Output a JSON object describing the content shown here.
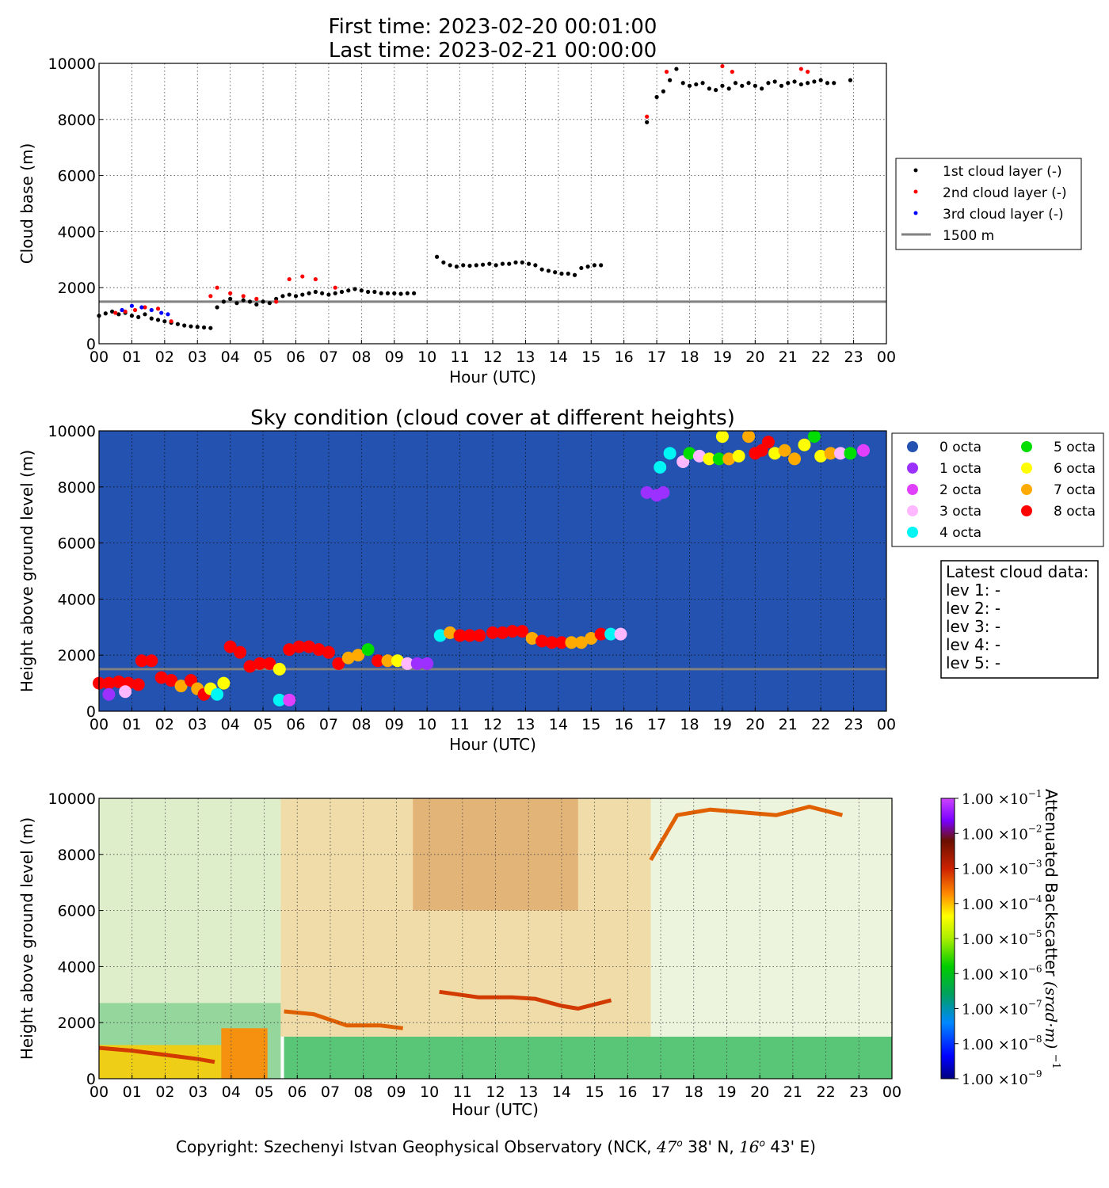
{
  "header": {
    "first_time": "First time: 2023-02-20 00:01:00",
    "last_time": "Last time: 2023-02-21 00:00:00"
  },
  "colors": {
    "layer1": "#000000",
    "layer2": "#ff0000",
    "layer3": "#0000ff",
    "reference_line": "#808080",
    "sky_background": "#2452b0",
    "octa_0": "#2452b0",
    "octa_1": "#9b30ff",
    "octa_2": "#e040fb",
    "octa_3": "#ffb8ff",
    "octa_4": "#00f5f5",
    "octa_5": "#00dd00",
    "octa_6": "#ffff00",
    "octa_7": "#ffaa00",
    "octa_8": "#ff0000"
  },
  "latest_cloud": {
    "title": "Latest cloud data:",
    "lines": [
      "lev 1: -",
      "lev 2: -",
      "lev 3: -",
      "lev 4: -",
      "lev 5: -"
    ]
  },
  "footer": {
    "text_a": "Copyright: Szechenyi Istvan Geophysical Observatory (NCK, ",
    "lat_deg": "47",
    "lat_min": " 38' N, ",
    "lon_deg": "16",
    "lon_min": " 43' E)",
    "degree_mark": "o"
  },
  "chart_data": [
    {
      "type": "scatter",
      "title": "",
      "xlabel": "Hour (UTC)",
      "ylabel": "Cloud base (m)",
      "xlim": [
        0,
        24
      ],
      "ylim": [
        0,
        10000
      ],
      "x_ticks": [
        "00",
        "01",
        "02",
        "03",
        "04",
        "05",
        "06",
        "07",
        "08",
        "09",
        "10",
        "11",
        "12",
        "13",
        "14",
        "15",
        "16",
        "17",
        "18",
        "19",
        "20",
        "21",
        "22",
        "23",
        "00"
      ],
      "y_ticks": [
        "0",
        "2000",
        "4000",
        "6000",
        "8000",
        "10000"
      ],
      "grid": true,
      "legend_position": "right",
      "reference_line": {
        "name": "1500 m",
        "y": 1500
      },
      "series": [
        {
          "name": "1st cloud layer (-)",
          "x": [
            0.0,
            0.2,
            0.4,
            0.6,
            0.8,
            1.0,
            1.2,
            1.4,
            1.6,
            1.8,
            2.0,
            2.2,
            2.4,
            2.6,
            2.8,
            3.0,
            3.2,
            3.4,
            3.6,
            3.8,
            4.0,
            4.2,
            4.4,
            4.6,
            4.8,
            5.0,
            5.2,
            5.4,
            5.6,
            5.8,
            6.0,
            6.2,
            6.4,
            6.6,
            6.8,
            7.0,
            7.2,
            7.4,
            7.6,
            7.8,
            8.0,
            8.2,
            8.4,
            8.6,
            8.8,
            9.0,
            9.2,
            9.4,
            9.6,
            10.3,
            10.5,
            10.7,
            10.9,
            11.1,
            11.3,
            11.5,
            11.7,
            11.9,
            12.1,
            12.3,
            12.5,
            12.7,
            12.9,
            13.1,
            13.3,
            13.5,
            13.7,
            13.9,
            14.1,
            14.3,
            14.5,
            14.7,
            14.9,
            15.1,
            15.3,
            16.7,
            17.0,
            17.2,
            17.4,
            17.6,
            17.8,
            18.0,
            18.2,
            18.4,
            18.6,
            18.8,
            19.0,
            19.2,
            19.4,
            19.6,
            19.8,
            20.0,
            20.2,
            20.4,
            20.6,
            20.8,
            21.0,
            21.2,
            21.4,
            21.6,
            21.8,
            22.0,
            22.2,
            22.4,
            22.9
          ],
          "y": [
            1000,
            1080,
            1150,
            1050,
            1100,
            1000,
            950,
            1050,
            900,
            850,
            800,
            750,
            700,
            650,
            620,
            600,
            580,
            560,
            1300,
            1500,
            1600,
            1450,
            1550,
            1500,
            1400,
            1500,
            1450,
            1600,
            1700,
            1750,
            1700,
            1750,
            1800,
            1850,
            1800,
            1750,
            1800,
            1850,
            1900,
            1950,
            1900,
            1850,
            1850,
            1800,
            1800,
            1800,
            1780,
            1800,
            1800,
            3100,
            2900,
            2800,
            2750,
            2800,
            2780,
            2800,
            2820,
            2850,
            2800,
            2850,
            2850,
            2900,
            2900,
            2850,
            2800,
            2650,
            2600,
            2550,
            2500,
            2500,
            2450,
            2700,
            2750,
            2800,
            2800,
            7900,
            8800,
            9000,
            9400,
            9800,
            9300,
            9200,
            9250,
            9300,
            9100,
            9050,
            9200,
            9100,
            9300,
            9200,
            9300,
            9200,
            9100,
            9300,
            9350,
            9200,
            9300,
            9350,
            9250,
            9300,
            9350,
            9400,
            9300,
            9300,
            9400
          ]
        },
        {
          "name": "2nd cloud layer (-)",
          "x": [
            0.5,
            0.8,
            1.1,
            1.4,
            1.8,
            2.2,
            3.4,
            3.6,
            4.0,
            4.4,
            4.8,
            5.4,
            5.8,
            6.2,
            6.6,
            7.2,
            16.7,
            17.3,
            19.0,
            19.3,
            21.4,
            21.6
          ],
          "y": [
            1100,
            1150,
            1200,
            1300,
            1250,
            800,
            1700,
            2000,
            1800,
            1700,
            1600,
            1500,
            2300,
            2400,
            2300,
            2000,
            8100,
            9700,
            9900,
            9700,
            9800,
            9700
          ]
        },
        {
          "name": "3rd cloud layer (-)",
          "x": [
            0.7,
            1.0,
            1.3,
            1.6,
            1.9,
            2.1
          ],
          "y": [
            1200,
            1350,
            1300,
            1200,
            1100,
            1050
          ]
        }
      ]
    },
    {
      "type": "scatter",
      "title": "Sky condition (cloud cover at different heights)",
      "xlabel": "Hour (UTC)",
      "ylabel": "Height above ground level (m)",
      "xlim": [
        0,
        24
      ],
      "ylim": [
        0,
        10000
      ],
      "x_ticks": [
        "00",
        "01",
        "02",
        "03",
        "04",
        "05",
        "06",
        "07",
        "08",
        "09",
        "10",
        "11",
        "12",
        "13",
        "14",
        "15",
        "16",
        "17",
        "18",
        "19",
        "20",
        "21",
        "22",
        "23",
        "00"
      ],
      "y_ticks": [
        "0",
        "2000",
        "4000",
        "6000",
        "8000",
        "10000"
      ],
      "grid": true,
      "legend_position": "right",
      "reference_line": {
        "y": 1500
      },
      "legend": [
        "0 octa",
        "1 octa",
        "2 octa",
        "3 octa",
        "4 octa",
        "5 octa",
        "6 octa",
        "7 octa",
        "8 octa"
      ],
      "points": [
        [
          0.0,
          1000,
          8
        ],
        [
          0.3,
          1000,
          8
        ],
        [
          0.6,
          1050,
          8
        ],
        [
          0.9,
          1000,
          8
        ],
        [
          1.2,
          950,
          8
        ],
        [
          0.3,
          600,
          1
        ],
        [
          0.8,
          700,
          3
        ],
        [
          1.3,
          1800,
          8
        ],
        [
          1.6,
          1800,
          8
        ],
        [
          1.9,
          1200,
          8
        ],
        [
          2.2,
          1100,
          8
        ],
        [
          2.5,
          900,
          7
        ],
        [
          2.8,
          1100,
          8
        ],
        [
          3.0,
          800,
          7
        ],
        [
          3.2,
          600,
          8
        ],
        [
          3.4,
          800,
          6
        ],
        [
          3.6,
          600,
          4
        ],
        [
          3.8,
          1000,
          6
        ],
        [
          4.0,
          2300,
          8
        ],
        [
          4.3,
          2100,
          8
        ],
        [
          4.6,
          1600,
          8
        ],
        [
          4.9,
          1700,
          8
        ],
        [
          5.2,
          1700,
          8
        ],
        [
          5.5,
          400,
          4
        ],
        [
          5.8,
          400,
          2
        ],
        [
          5.5,
          1500,
          6
        ],
        [
          5.8,
          2200,
          8
        ],
        [
          6.1,
          2300,
          8
        ],
        [
          6.4,
          2300,
          8
        ],
        [
          6.7,
          2200,
          8
        ],
        [
          7.0,
          2100,
          8
        ],
        [
          7.3,
          1700,
          8
        ],
        [
          7.6,
          1900,
          7
        ],
        [
          7.9,
          2000,
          7
        ],
        [
          8.2,
          2200,
          5
        ],
        [
          8.5,
          1800,
          8
        ],
        [
          8.8,
          1800,
          7
        ],
        [
          9.1,
          1800,
          6
        ],
        [
          9.4,
          1700,
          3
        ],
        [
          9.7,
          1700,
          1
        ],
        [
          10.0,
          1700,
          1
        ],
        [
          10.4,
          2700,
          4
        ],
        [
          10.7,
          2800,
          7
        ],
        [
          11.0,
          2700,
          8
        ],
        [
          11.3,
          2700,
          8
        ],
        [
          11.6,
          2700,
          8
        ],
        [
          12.0,
          2800,
          8
        ],
        [
          12.3,
          2800,
          8
        ],
        [
          12.6,
          2850,
          8
        ],
        [
          12.9,
          2850,
          8
        ],
        [
          13.2,
          2600,
          7
        ],
        [
          13.5,
          2500,
          8
        ],
        [
          13.8,
          2450,
          8
        ],
        [
          14.1,
          2450,
          8
        ],
        [
          14.4,
          2450,
          7
        ],
        [
          14.7,
          2450,
          7
        ],
        [
          15.0,
          2600,
          7
        ],
        [
          15.3,
          2750,
          8
        ],
        [
          15.6,
          2750,
          4
        ],
        [
          15.9,
          2750,
          3
        ],
        [
          16.7,
          7800,
          1
        ],
        [
          17.0,
          7700,
          1
        ],
        [
          17.2,
          7800,
          1
        ],
        [
          17.1,
          8700,
          4
        ],
        [
          17.4,
          9200,
          4
        ],
        [
          17.8,
          8900,
          3
        ],
        [
          18.0,
          9200,
          5
        ],
        [
          18.3,
          9100,
          3
        ],
        [
          18.6,
          9000,
          6
        ],
        [
          18.9,
          9000,
          5
        ],
        [
          19.0,
          9800,
          6
        ],
        [
          19.2,
          9000,
          7
        ],
        [
          19.5,
          9100,
          6
        ],
        [
          19.8,
          9800,
          7
        ],
        [
          20.0,
          9200,
          8
        ],
        [
          20.2,
          9300,
          8
        ],
        [
          20.4,
          9600,
          8
        ],
        [
          20.6,
          9200,
          6
        ],
        [
          20.9,
          9300,
          7
        ],
        [
          21.2,
          9000,
          7
        ],
        [
          21.5,
          9500,
          6
        ],
        [
          21.8,
          9800,
          5
        ],
        [
          22.0,
          9100,
          6
        ],
        [
          22.3,
          9200,
          7
        ],
        [
          22.6,
          9200,
          3
        ],
        [
          22.9,
          9200,
          5
        ],
        [
          23.3,
          9300,
          2
        ]
      ]
    },
    {
      "type": "heatmap",
      "title": "",
      "xlabel": "Hour (UTC)",
      "ylabel": "Height above ground level (m)",
      "xlim": [
        0,
        24
      ],
      "ylim": [
        0,
        10000
      ],
      "x_ticks": [
        "00",
        "01",
        "02",
        "03",
        "04",
        "05",
        "06",
        "07",
        "08",
        "09",
        "10",
        "11",
        "12",
        "13",
        "14",
        "15",
        "16",
        "17",
        "18",
        "19",
        "20",
        "21",
        "22",
        "23",
        "00"
      ],
      "y_ticks": [
        "0",
        "2000",
        "4000",
        "6000",
        "8000",
        "10000"
      ],
      "grid": true,
      "colorbar": {
        "label": "Attenuated Backscatter",
        "unit": "(srad·m)",
        "unit_exponent": "−1",
        "scale": "log",
        "range": [
          1e-09,
          0.1
        ],
        "tick_mantissa": "1.00",
        "tick_base": "×10",
        "tick_exponents": [
          "−1",
          "−2",
          "−3",
          "−4",
          "−5",
          "−6",
          "−7",
          "−8",
          "−9"
        ]
      },
      "features": [
        {
          "name": "cloud layer",
          "x": [
            0.0,
            1.0,
            2.0,
            3.0,
            3.5
          ],
          "y": [
            1100,
            1000,
            850,
            700,
            600
          ],
          "log10": -4.0
        },
        {
          "name": "cloud layer",
          "x": [
            5.6,
            6.5,
            7.5,
            8.5,
            9.2
          ],
          "y": [
            2400,
            2300,
            1900,
            1900,
            1800
          ],
          "log10": -4.3
        },
        {
          "name": "cloud layer",
          "x": [
            10.3,
            11.5,
            12.5,
            13.2,
            14.0,
            14.5,
            15.5
          ],
          "y": [
            3100,
            2900,
            2900,
            2850,
            2600,
            2500,
            2800
          ],
          "log10": -3.8
        },
        {
          "name": "cloud layer",
          "x": [
            16.7,
            17.5,
            18.5,
            19.5,
            20.5,
            21.5,
            22.5
          ],
          "y": [
            7800,
            9400,
            9600,
            9500,
            9400,
            9700,
            9400
          ],
          "log10": -4.5
        }
      ]
    }
  ]
}
